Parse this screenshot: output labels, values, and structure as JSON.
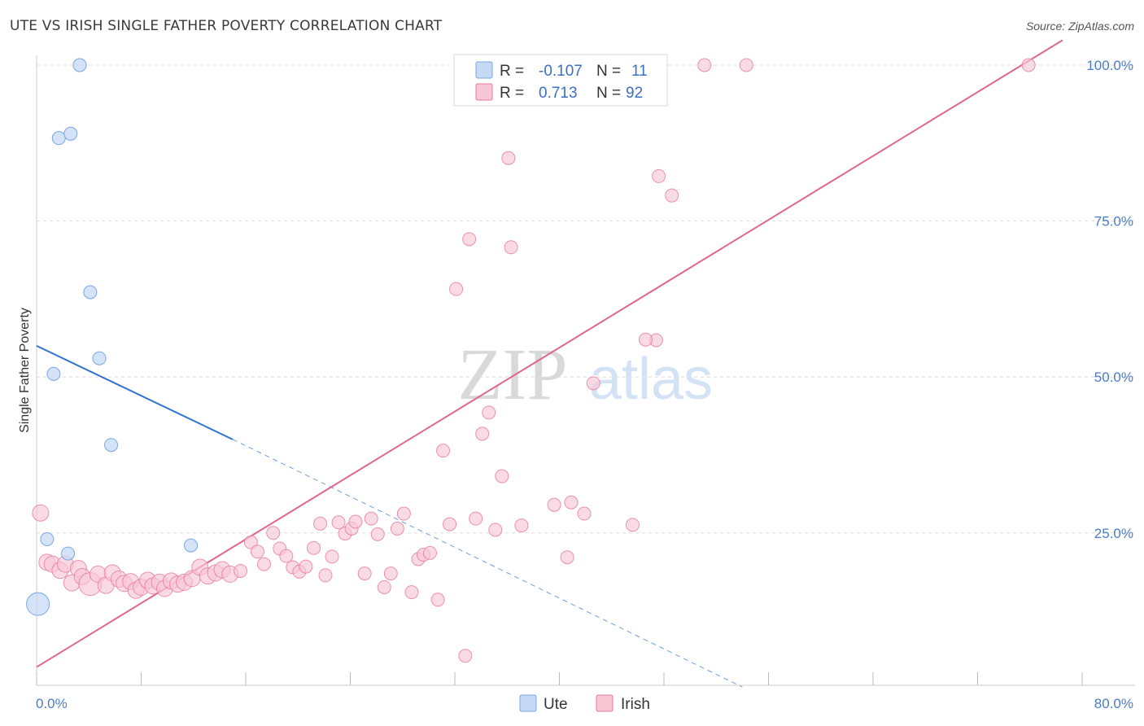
{
  "title": "UTE VS IRISH SINGLE FATHER POVERTY CORRELATION CHART",
  "source": "Source: ZipAtlas.com",
  "watermark": {
    "zip": "ZIP",
    "atlas": "atlas"
  },
  "colors": {
    "ute": "#7aa6e6",
    "ute_fill": "#c5d9f5",
    "ute_line": "#2f74d0",
    "irish": "#e8789c",
    "irish_fill": "#f7c7d6",
    "irish_line": "#e06690",
    "value_text": "#3a6fc4",
    "grid": "#dddddd"
  },
  "legend_top": {
    "rows": [
      {
        "series": "Ute",
        "r_label": "R =",
        "r_value": "-0.107",
        "n_label": "N =",
        "n_value": "11"
      },
      {
        "series": "Irish",
        "r_label": "R =",
        "r_value": "0.713",
        "n_label": "N =",
        "n_value": "92"
      }
    ]
  },
  "legend_bottom": [
    {
      "label": "Ute"
    },
    {
      "label": "Irish"
    }
  ],
  "chart_data": {
    "type": "scatter",
    "title": "UTE VS IRISH SINGLE FATHER POVERTY CORRELATION CHART",
    "xlabel": "",
    "ylabel": "Single Father Poverty",
    "xlim": [
      0,
      80
    ],
    "ylim": [
      0,
      104
    ],
    "x_tick_labels": [
      {
        "value": 0,
        "label": "0.0%"
      },
      {
        "value": 80,
        "label": "80.0%"
      }
    ],
    "y_tick_labels": [
      {
        "value": 25,
        "label": "25.0%"
      },
      {
        "value": 50,
        "label": "50.0%"
      },
      {
        "value": 75,
        "label": "75.0%"
      },
      {
        "value": 100,
        "label": "100.0%"
      }
    ],
    "grid": true,
    "legend_placement": "top-center",
    "series": [
      {
        "name": "Ute",
        "color": "#7aa6e6",
        "points": [
          [
            0.1,
            13.6,
            3
          ],
          [
            3.3,
            100,
            1
          ],
          [
            1.7,
            88.3,
            1
          ],
          [
            2.6,
            89,
            1
          ],
          [
            4.1,
            63.6,
            1
          ],
          [
            4.8,
            53,
            1
          ],
          [
            1.3,
            50.5,
            1
          ],
          [
            5.7,
            39.1,
            1
          ],
          [
            0.8,
            24,
            1
          ],
          [
            2.4,
            21.7,
            1
          ],
          [
            11.8,
            23,
            1
          ]
        ],
        "trend": {
          "x0": 0,
          "y0": 55,
          "x1": 15,
          "y1": 40,
          "dash_x1": 54,
          "dash_y1": 0.3
        }
      },
      {
        "name": "Irish",
        "color": "#e8789c",
        "points": [
          [
            0.3,
            28.2,
            2
          ],
          [
            0.8,
            20.3,
            2
          ],
          [
            1.2,
            20,
            2
          ],
          [
            1.8,
            19,
            2
          ],
          [
            2.2,
            20,
            2
          ],
          [
            2.7,
            17,
            2
          ],
          [
            3.2,
            19.3,
            2
          ],
          [
            3.5,
            18,
            2
          ],
          [
            4.1,
            16.8,
            3
          ],
          [
            4.7,
            18.4,
            2
          ],
          [
            5.3,
            16.6,
            2
          ],
          [
            5.8,
            18.6,
            2
          ],
          [
            6.3,
            17.6,
            2
          ],
          [
            6.7,
            16.9,
            2
          ],
          [
            7.2,
            17.2,
            2
          ],
          [
            7.6,
            15.8,
            2
          ],
          [
            8.0,
            16.3,
            2
          ],
          [
            8.5,
            17.4,
            2
          ],
          [
            8.9,
            16.5,
            2
          ],
          [
            9.4,
            17.1,
            2
          ],
          [
            9.8,
            16.1,
            2
          ],
          [
            10.3,
            17.3,
            2
          ],
          [
            10.8,
            16.8,
            2
          ],
          [
            11.3,
            17.1,
            2
          ],
          [
            11.9,
            17.7,
            2
          ],
          [
            12.5,
            19.5,
            2
          ],
          [
            13.1,
            18.1,
            2
          ],
          [
            13.7,
            18.6,
            2
          ],
          [
            14.2,
            19.1,
            2
          ],
          [
            14.8,
            18.4,
            2
          ],
          [
            15.6,
            18.9,
            1
          ],
          [
            16.4,
            23.5,
            1
          ],
          [
            16.9,
            22,
            1
          ],
          [
            17.4,
            20,
            1
          ],
          [
            18.1,
            25,
            1
          ],
          [
            18.6,
            22.5,
            1
          ],
          [
            19.1,
            21.3,
            1
          ],
          [
            19.6,
            19.5,
            1
          ],
          [
            20.1,
            18.8,
            1
          ],
          [
            20.6,
            19.6,
            1
          ],
          [
            21.2,
            22.6,
            1
          ],
          [
            21.7,
            26.5,
            1
          ],
          [
            22.1,
            18.2,
            1
          ],
          [
            22.6,
            21.2,
            1
          ],
          [
            23.1,
            26.7,
            1
          ],
          [
            23.6,
            24.9,
            1
          ],
          [
            24.1,
            25.7,
            1
          ],
          [
            24.4,
            26.8,
            1
          ],
          [
            25.1,
            18.5,
            1
          ],
          [
            25.6,
            27.3,
            1
          ],
          [
            26.1,
            24.8,
            1
          ],
          [
            26.6,
            16.3,
            1
          ],
          [
            27.1,
            18.5,
            1
          ],
          [
            27.6,
            25.7,
            1
          ],
          [
            28.1,
            28.1,
            1
          ],
          [
            28.7,
            15.5,
            1
          ],
          [
            29.2,
            20.8,
            1
          ],
          [
            29.6,
            21.5,
            1
          ],
          [
            30.1,
            21.8,
            1
          ],
          [
            30.7,
            14.3,
            1
          ],
          [
            31.1,
            38.2,
            1
          ],
          [
            31.6,
            26.4,
            1
          ],
          [
            32.1,
            64.1,
            1
          ],
          [
            32.8,
            5.3,
            1
          ],
          [
            33.1,
            72.1,
            1
          ],
          [
            33.6,
            27.3,
            1
          ],
          [
            34.1,
            40.9,
            1
          ],
          [
            34.6,
            44.3,
            1
          ],
          [
            35.1,
            25.5,
            1
          ],
          [
            35.6,
            34.1,
            1
          ],
          [
            36.1,
            85.1,
            1
          ],
          [
            36.3,
            70.8,
            1
          ],
          [
            37.1,
            26.2,
            1
          ],
          [
            37.6,
            100,
            1
          ],
          [
            38.1,
            98,
            1
          ],
          [
            39.6,
            29.5,
            1
          ],
          [
            40.6,
            21.1,
            1
          ],
          [
            40.9,
            29.9,
            1
          ],
          [
            41.9,
            28.1,
            1
          ],
          [
            42.6,
            49,
            1
          ],
          [
            43.6,
            100,
            1
          ],
          [
            45.4,
            100,
            1
          ],
          [
            45.6,
            26.3,
            1
          ],
          [
            47.6,
            82.2,
            1
          ],
          [
            47.4,
            55.9,
            1
          ],
          [
            46.6,
            56,
            1
          ],
          [
            48.6,
            79.1,
            1
          ],
          [
            51.1,
            100,
            1
          ],
          [
            54.3,
            100,
            1
          ],
          [
            75.9,
            100,
            1
          ],
          [
            37.9,
            100,
            1
          ],
          [
            36.9,
            100,
            1
          ]
        ],
        "trend": {
          "x0": 0,
          "y0": 3.5,
          "x1": 78.5,
          "y1": 104
        }
      }
    ]
  }
}
